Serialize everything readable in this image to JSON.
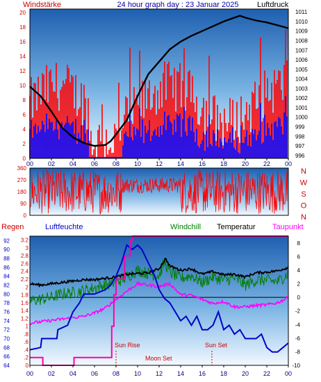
{
  "header": {
    "left_label": "Windstärke",
    "title": "24 hour graph day : 23 Januar 2025",
    "right_label": "Luftdruck"
  },
  "colors": {
    "wind": "#ff0000",
    "gust": "#0000ff",
    "pressure": "#000000",
    "direction": "#ff0000",
    "humidity": "#0000cc",
    "windchill": "#008000",
    "temperature": "#000000",
    "dewpoint": "#ff00ff",
    "rain": "#ff00aa",
    "label_red": "#cc0000",
    "label_blue": "#0000cc",
    "label_green": "#008000",
    "label_magenta": "#ff00ff"
  },
  "panel3_labels": {
    "rain": "Regen",
    "humidity": "Luftfeuchte",
    "windchill": "Windchill",
    "temperature": "Temperatur",
    "dewpoint": "Taupunkt"
  },
  "chart_data": [
    {
      "type": "bar",
      "name_hint": "wind",
      "x_ticks": [
        "00",
        "02",
        "04",
        "06",
        "08",
        "10",
        "12",
        "14",
        "16",
        "18",
        "20",
        "22",
        "00"
      ],
      "y_left_ticks": [
        "0",
        "2",
        "4",
        "6",
        "8",
        "10",
        "12",
        "14",
        "16",
        "18",
        "20"
      ],
      "y_left_range": [
        0,
        20.5
      ],
      "y_right_ticks": [
        "996",
        "997",
        "998",
        "999",
        "1000",
        "1001",
        "1002",
        "1003",
        "1004",
        "1005",
        "1006",
        "1007",
        "1008",
        "1009",
        "1010",
        "1011"
      ],
      "y_right_range": [
        995.7,
        1011.3
      ],
      "pressure_points": [
        [
          0,
          1003.2
        ],
        [
          1,
          1002.2
        ],
        [
          2,
          1000.6
        ],
        [
          3,
          998.9
        ],
        [
          4,
          997.9
        ],
        [
          5,
          997.3
        ],
        [
          6,
          997.0
        ],
        [
          7,
          997.1
        ],
        [
          7.5,
          997.5
        ],
        [
          8,
          998.2
        ],
        [
          9,
          999.7
        ],
        [
          10,
          1002.2
        ],
        [
          11,
          1004.5
        ],
        [
          12,
          1005.8
        ],
        [
          13,
          1007.1
        ],
        [
          14,
          1007.9
        ],
        [
          15,
          1008.5
        ],
        [
          16,
          1009.0
        ],
        [
          17,
          1009.5
        ],
        [
          18,
          1010.0
        ],
        [
          19,
          1010.4
        ],
        [
          19.5,
          1010.6
        ],
        [
          20,
          1010.4
        ],
        [
          21,
          1010.1
        ],
        [
          22,
          1009.9
        ],
        [
          23,
          1009.6
        ],
        [
          24,
          1009.3
        ]
      ]
    },
    {
      "type": "line",
      "name_hint": "wind direction",
      "x_ticks": [
        "00",
        "02",
        "04",
        "06",
        "08",
        "10",
        "12",
        "14",
        "16",
        "18",
        "20",
        "22",
        "00"
      ],
      "y_left_ticks": [
        "0",
        "90",
        "180",
        "270",
        "360"
      ],
      "y_range": [
        0,
        360
      ],
      "right_letters": [
        "N",
        "W",
        "S",
        "O",
        "N"
      ]
    },
    {
      "type": "line",
      "name_hint": "temperature humidity rain",
      "x_ticks": [
        "00",
        "02",
        "04",
        "06",
        "08",
        "10",
        "12",
        "14",
        "16",
        "18",
        "20",
        "22",
        "00"
      ],
      "y_rain_ticks": [
        "0",
        ".2",
        ".4",
        ".6",
        ".8",
        "1",
        "1.2",
        "1.4",
        "1.6",
        "1.8",
        "2",
        "2.2",
        "2.4",
        "2.6",
        "2.8",
        "3",
        "3.2"
      ],
      "y_rain_range": [
        0,
        3.3
      ],
      "y_humidity_ticks": [
        "64",
        "66",
        "68",
        "70",
        "72",
        "74",
        "76",
        "78",
        "80",
        "82",
        "84",
        "86",
        "88",
        "90",
        "92"
      ],
      "y_humidity_range": [
        64,
        93
      ],
      "y_temp_ticks": [
        "-10",
        "-8",
        "-6",
        "-4",
        "-2",
        "0",
        "2",
        "4",
        "6",
        "8"
      ],
      "y_temp_range": [
        -10,
        9
      ],
      "annotations": {
        "sun_rise": "Sun Rise",
        "moon_set": "Moon Set",
        "sun_set": "Sun Set"
      },
      "event_hours": {
        "sun_rise": 8.0,
        "sun_set": 16.9
      },
      "rain_points": [
        [
          0,
          0.2
        ],
        [
          1,
          0.2
        ],
        [
          1.2,
          0
        ],
        [
          4,
          0
        ],
        [
          4.1,
          0.2
        ],
        [
          7.3,
          0.2
        ],
        [
          7.6,
          1.0
        ],
        [
          7.8,
          1.8
        ],
        [
          8,
          2.2
        ],
        [
          8.8,
          2.8
        ],
        [
          9.3,
          3.2
        ],
        [
          9.5,
          3.3
        ],
        [
          24,
          3.3
        ]
      ],
      "humidity_points": [
        [
          0,
          67.5
        ],
        [
          1,
          68
        ],
        [
          1.1,
          70
        ],
        [
          2.5,
          70
        ],
        [
          2.6,
          72
        ],
        [
          3.5,
          73
        ],
        [
          4,
          76
        ],
        [
          4.6,
          78
        ],
        [
          5,
          80
        ],
        [
          6,
          80
        ],
        [
          7,
          81
        ],
        [
          7.5,
          82
        ],
        [
          8,
          84
        ],
        [
          8.5,
          87
        ],
        [
          9,
          91
        ],
        [
          9.5,
          90
        ],
        [
          10,
          91
        ],
        [
          10.4,
          90
        ],
        [
          10.8,
          88
        ],
        [
          11.2,
          86
        ],
        [
          11.6,
          84
        ],
        [
          12,
          81
        ],
        [
          12.5,
          79
        ],
        [
          13,
          78
        ],
        [
          13.5,
          76
        ],
        [
          14,
          74
        ],
        [
          14.5,
          75
        ],
        [
          15,
          73
        ],
        [
          15.5,
          75
        ],
        [
          16,
          72
        ],
        [
          16.5,
          72
        ],
        [
          17,
          73
        ],
        [
          17.5,
          76
        ],
        [
          18,
          72
        ],
        [
          18.5,
          73
        ],
        [
          19,
          71
        ],
        [
          19.5,
          72
        ],
        [
          20,
          70
        ],
        [
          21,
          70
        ],
        [
          21.5,
          71
        ],
        [
          22,
          68
        ],
        [
          22.5,
          67
        ],
        [
          23,
          67
        ],
        [
          23.5,
          68
        ],
        [
          24,
          69
        ]
      ],
      "windchill_points": [
        [
          0,
          -0.5
        ],
        [
          1,
          -0.3
        ],
        [
          2,
          0
        ],
        [
          3,
          0.5
        ],
        [
          4,
          0.7
        ],
        [
          5,
          1.0
        ],
        [
          6,
          1.4
        ],
        [
          7,
          1.8
        ],
        [
          8,
          2.2
        ],
        [
          9,
          3.0
        ],
        [
          10,
          4.0
        ],
        [
          11,
          3.5
        ],
        [
          12,
          3.2
        ],
        [
          12.5,
          5.2
        ],
        [
          13,
          3.7
        ],
        [
          14,
          2.8
        ],
        [
          15,
          3.2
        ],
        [
          16,
          2.2
        ],
        [
          17,
          3.0
        ],
        [
          18,
          2.5
        ],
        [
          19,
          2.8
        ],
        [
          20,
          1.8
        ],
        [
          21,
          2.5
        ],
        [
          22,
          2.5
        ],
        [
          23,
          2.3
        ],
        [
          24,
          3.5
        ]
      ],
      "temperature_points": [
        [
          0,
          2.0
        ],
        [
          1,
          1.8
        ],
        [
          2,
          2.0
        ],
        [
          3,
          2.2
        ],
        [
          4,
          2.4
        ],
        [
          5,
          2.6
        ],
        [
          6,
          2.6
        ],
        [
          7,
          2.8
        ],
        [
          8,
          3.0
        ],
        [
          9,
          3.4
        ],
        [
          10,
          3.5
        ],
        [
          11,
          3.6
        ],
        [
          12,
          4.2
        ],
        [
          12.6,
          5.7
        ],
        [
          13,
          4.6
        ],
        [
          14,
          4.0
        ],
        [
          15,
          4.2
        ],
        [
          16,
          3.4
        ],
        [
          17,
          3.8
        ],
        [
          18,
          3.3
        ],
        [
          19,
          3.4
        ],
        [
          20,
          3.0
        ],
        [
          21,
          3.6
        ],
        [
          22,
          3.7
        ],
        [
          23,
          3.9
        ],
        [
          24,
          4.4
        ]
      ],
      "dewpoint_points": [
        [
          0,
          -3.8
        ],
        [
          1,
          -3.6
        ],
        [
          2,
          -3.4
        ],
        [
          3,
          -3.2
        ],
        [
          4,
          -3.0
        ],
        [
          5,
          -2.8
        ],
        [
          6,
          -2.3
        ],
        [
          7,
          -1.6
        ],
        [
          8,
          -0.3
        ],
        [
          9,
          0.9
        ],
        [
          10,
          2.0
        ],
        [
          11,
          1.8
        ],
        [
          12,
          1.6
        ],
        [
          13,
          2.0
        ],
        [
          14,
          0.4
        ],
        [
          15,
          0.3
        ],
        [
          16,
          -0.3
        ],
        [
          17,
          -0.9
        ],
        [
          18,
          -0.6
        ],
        [
          19,
          -1.4
        ],
        [
          20,
          -1.4
        ],
        [
          21,
          -1.2
        ],
        [
          22,
          -1.1
        ],
        [
          23,
          -0.8
        ],
        [
          24,
          0.0
        ]
      ]
    }
  ]
}
